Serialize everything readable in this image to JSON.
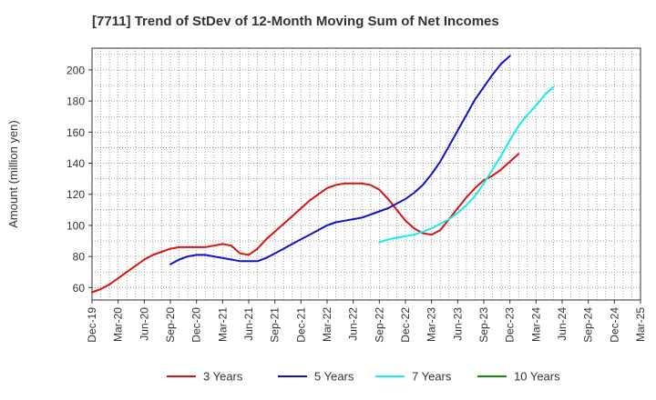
{
  "chart_data": {
    "type": "line",
    "title": "[7711]  Trend of StDev of 12-Month Moving Sum of Net Incomes",
    "xlabel": "",
    "ylabel": "Amount (million yen)",
    "ylim": [
      52,
      214
    ],
    "yticks": [
      60,
      80,
      100,
      120,
      140,
      160,
      180,
      200
    ],
    "x_tick_labels": [
      "Dec-19",
      "Mar-20",
      "Jun-20",
      "Sep-20",
      "Dec-20",
      "Mar-21",
      "Jun-21",
      "Sep-21",
      "Dec-21",
      "Mar-22",
      "Jun-22",
      "Sep-22",
      "Dec-22",
      "Mar-23",
      "Jun-23",
      "Sep-23",
      "Dec-23",
      "Mar-24",
      "Jun-24",
      "Sep-24",
      "Dec-24",
      "Mar-25"
    ],
    "grid": true,
    "legend_position": "bottom",
    "series": [
      {
        "name": "3 Years",
        "color": "#dd1111",
        "start_index": 0,
        "values": [
          57,
          59,
          62,
          66,
          70,
          74,
          78,
          81,
          83,
          85,
          86,
          86,
          86,
          86,
          87,
          88,
          87,
          82,
          81,
          85,
          91,
          96,
          101,
          106,
          111,
          116,
          120,
          124,
          126,
          127,
          127,
          127,
          126,
          123,
          117,
          110,
          103,
          98,
          95,
          94,
          97,
          104,
          111,
          118,
          124,
          129,
          132,
          136,
          141,
          146
        ]
      },
      {
        "name": "5 Years",
        "color": "#1111cc",
        "start_index": 9,
        "values": [
          75,
          78,
          80,
          81,
          81,
          80,
          79,
          78,
          77,
          77,
          77,
          79,
          82,
          85,
          88,
          91,
          94,
          97,
          100,
          102,
          103,
          104,
          105,
          107,
          109,
          111,
          114,
          117,
          121,
          126,
          133,
          141,
          151,
          161,
          171,
          181,
          189,
          197,
          204,
          209
        ]
      },
      {
        "name": "7 Years",
        "color": "#11eeee",
        "start_index": 33,
        "values": [
          89,
          91,
          92,
          93,
          94,
          96,
          98,
          101,
          104,
          108,
          113,
          119,
          127,
          136,
          145,
          155,
          164,
          171,
          177,
          184,
          189
        ]
      },
      {
        "name": "10 Years",
        "color": "#118811",
        "start_index": 0,
        "values": []
      }
    ]
  }
}
